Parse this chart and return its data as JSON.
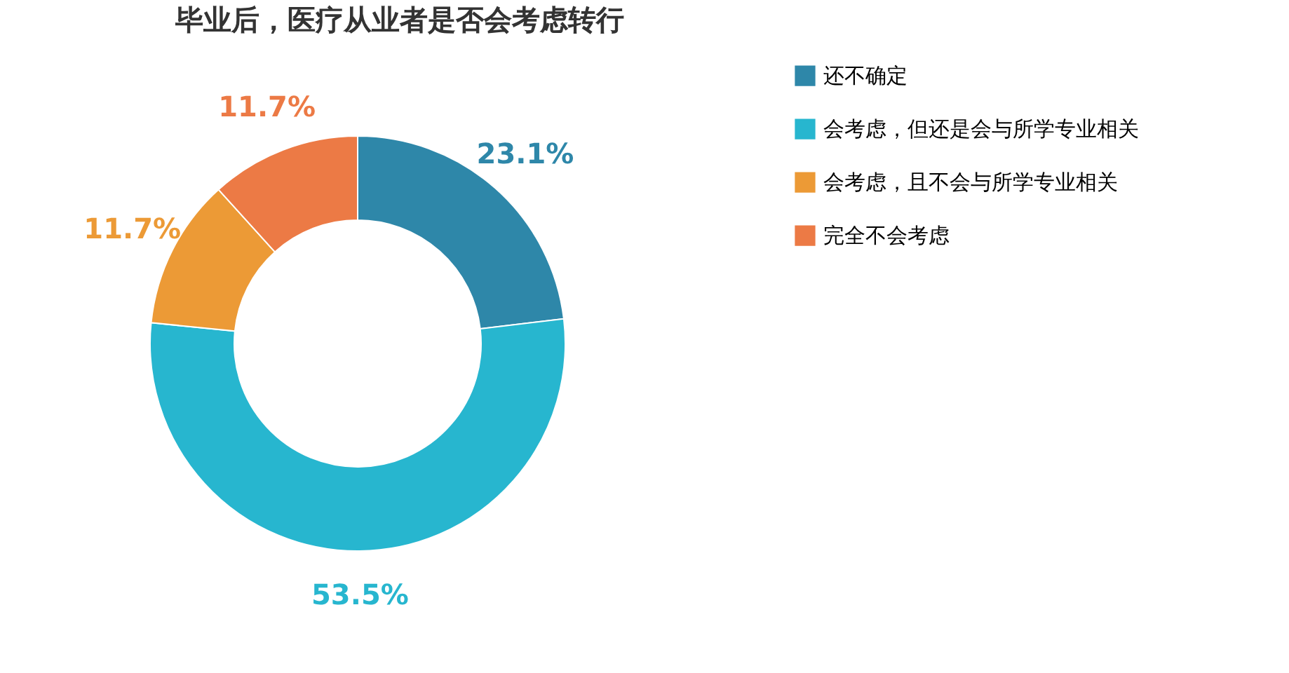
{
  "chart_data": {
    "type": "donut",
    "title": "毕业后，医疗从业者是否会考虑转行",
    "categories": [
      "还不确定",
      "会考虑，但还是会与所学专业相关",
      "会考虑，且不会与所学专业相关",
      "完全不会考虑"
    ],
    "values": [
      23.1,
      53.5,
      11.7,
      11.7
    ],
    "colors": [
      "#2e87a9",
      "#27b6cf",
      "#ec9a36",
      "#ec7a45"
    ],
    "value_labels": [
      "23.1%",
      "53.5%",
      "11.7%",
      "11.7%"
    ],
    "legend": "right"
  }
}
